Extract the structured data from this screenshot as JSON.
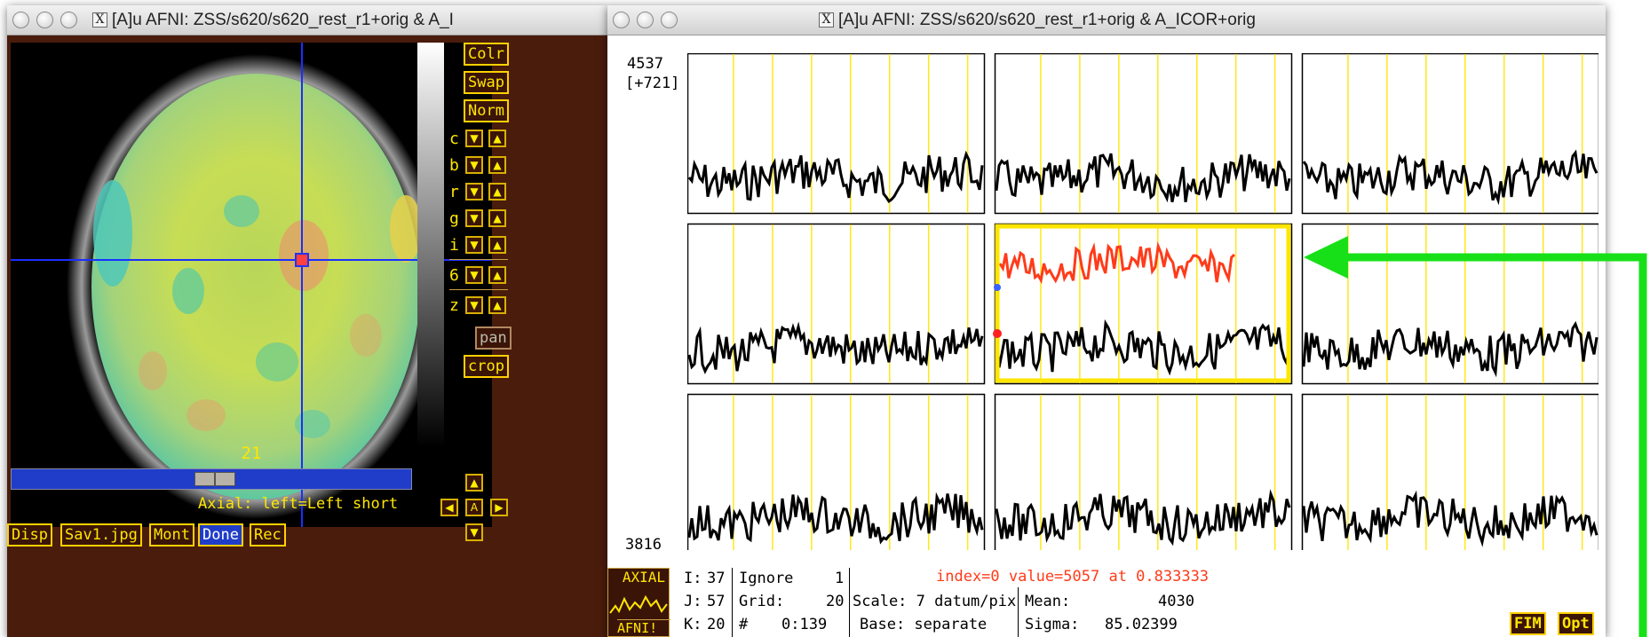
{
  "left_window": {
    "title": "[A]u AFNI: ZSS/s620/s620_rest_r1+orig & A_I",
    "side_buttons": [
      "Colr",
      "Swap",
      "Norm"
    ],
    "arrow_rows": [
      "c",
      "b",
      "r",
      "g",
      "i",
      "6",
      "z"
    ],
    "pan_label": "pan",
    "crop_label": "crop",
    "slice_number": "21",
    "orientation_label": "Axial: left=Left short",
    "bottom_buttons": [
      "Disp",
      "Sav1.jpg",
      "Mont",
      "Done",
      "Rec"
    ],
    "nav_center": "A"
  },
  "right_window": {
    "title": "[A]u AFNI: ZSS/s620/s620_rest_r1+orig & A_ICOR+orig",
    "y_top": "4537",
    "y_range": "[+721]",
    "y_bottom": "3816",
    "axial_label": "AXIAL",
    "afni_label": "AFNI!",
    "status": {
      "i_label": "I:",
      "i_value": "37",
      "ignore_label": "Ignore",
      "ignore_value": "1",
      "j_label": "J:",
      "j_value": "57",
      "grid_label": "Grid:",
      "grid_value": "20",
      "k_label": "K:",
      "k_value": "20",
      "hash_label": "#",
      "range_value": "0:139",
      "scale_text": "Scale: 7 datum/pix",
      "base_text": "Base: separate",
      "index_text": "index=0 value=5057 at 0.833333",
      "mean_label": "Mean:",
      "mean_value": "4030",
      "sigma_label": "Sigma:",
      "sigma_value": "85.02399"
    },
    "fim_label": "FIM",
    "opt_label": "Opt"
  },
  "colors": {
    "afni_bg": "#4a1c0c",
    "afni_yellow": "#ffe600",
    "crosshair": "#1a2fff",
    "trace_highlight": "#ff3b1a",
    "arrow": "#18e018"
  }
}
